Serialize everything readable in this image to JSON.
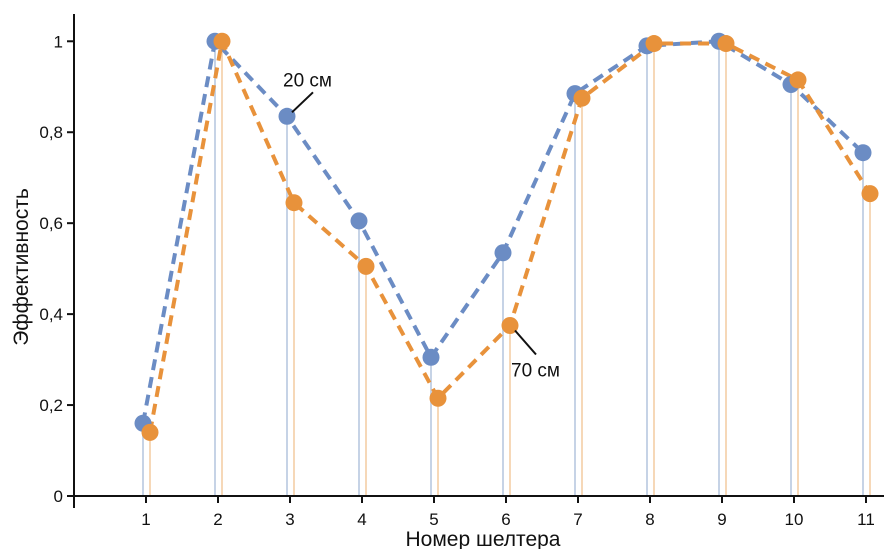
{
  "chart_data": {
    "type": "line",
    "title": "",
    "xlabel": "Номер шелтера",
    "ylabel": "Эффективность",
    "x": [
      1,
      2,
      3,
      4,
      5,
      6,
      7,
      8,
      9,
      10,
      11
    ],
    "x_tick_labels": [
      "1",
      "2",
      "3",
      "4",
      "5",
      "6",
      "7",
      "8",
      "9",
      "10",
      "11"
    ],
    "y_ticks": [
      0,
      0.2,
      0.4,
      0.6,
      0.8,
      1
    ],
    "y_tick_labels": [
      "0",
      "0,2",
      "0,4",
      "0,6",
      "0,8",
      "1"
    ],
    "xlim": [
      0,
      11.25
    ],
    "ylim": [
      0,
      1.06
    ],
    "grid": false,
    "series": [
      {
        "name": "20 см",
        "color": "#6b8cc4",
        "drop_line_color": "#c6d3e6",
        "values": [
          0.16,
          1.0,
          0.835,
          0.605,
          0.305,
          0.535,
          0.885,
          0.99,
          1.0,
          0.905,
          0.755
        ]
      },
      {
        "name": "70 см",
        "color": "#e8923b",
        "drop_line_color": "#f6d8b8",
        "values": [
          0.14,
          1.0,
          0.645,
          0.505,
          0.215,
          0.375,
          0.875,
          0.995,
          0.995,
          0.915,
          0.665
        ]
      }
    ],
    "annotations": [
      {
        "text": "20 см",
        "series": 0,
        "x": 3
      },
      {
        "text": "70 см",
        "series": 1,
        "x": 6
      }
    ]
  }
}
